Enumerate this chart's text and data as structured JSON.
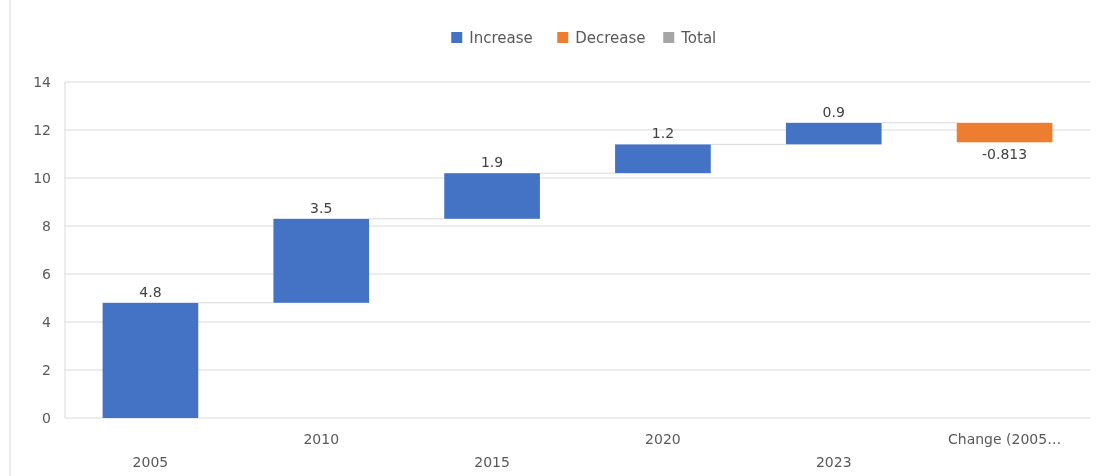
{
  "chart_data": {
    "type": "bar",
    "categories": [
      "2005",
      "2010",
      "2015",
      "2020",
      "2023",
      "Change (2005…"
    ],
    "series": [
      {
        "name": "Increase",
        "color": "#4472c4",
        "values": [
          4.8,
          3.5,
          1.9,
          1.2,
          0.9,
          null
        ],
        "base": [
          0,
          4.8,
          8.3,
          10.2,
          11.4,
          null
        ]
      },
      {
        "name": "Decrease",
        "color": "#ed7d31",
        "values": [
          null,
          null,
          null,
          null,
          null,
          -0.813
        ],
        "base": [
          null,
          null,
          null,
          null,
          null,
          12.3
        ]
      },
      {
        "name": "Total",
        "color": "#a5a5a5",
        "values": [
          null,
          null,
          null,
          null,
          null,
          null
        ]
      }
    ],
    "ylim": [
      0,
      14
    ],
    "yticks": [
      0,
      2,
      4,
      6,
      8,
      10,
      12,
      14
    ],
    "grid": "y",
    "legend": "top",
    "data_labels": true
  }
}
